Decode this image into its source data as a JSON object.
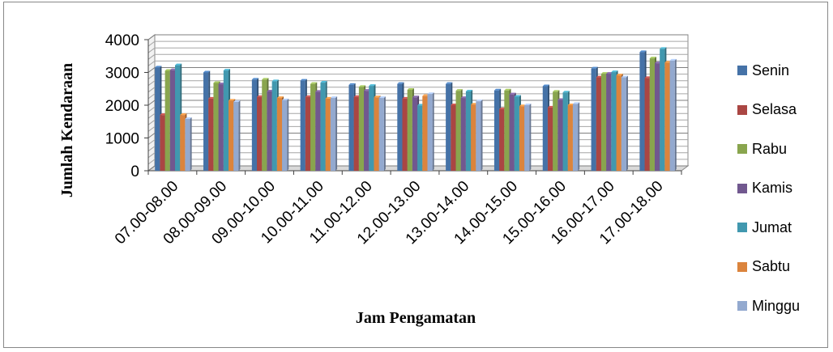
{
  "chart_data": {
    "type": "bar",
    "title": "",
    "xlabel": "Jam Pengamatan",
    "ylabel": "Jumlah Kendaraan",
    "ylim": [
      0,
      4000
    ],
    "yticks": [
      0,
      1000,
      2000,
      3000,
      4000
    ],
    "grid": true,
    "legend_position": "right",
    "categories": [
      "07.00-08.00",
      "08.00-09.00",
      "09.00-10.00",
      "10.00-11.00",
      "11.00-12.00",
      "12.00-13.00",
      "13.00-14.00",
      "14.00-15.00",
      "15.00-16.00",
      "16.00-17.00",
      "17.00-18.00"
    ],
    "series": [
      {
        "name": "Senin",
        "color": "#4572A7",
        "values": [
          3150,
          3000,
          2780,
          2750,
          2620,
          2650,
          2650,
          2450,
          2580,
          3120,
          3620
        ]
      },
      {
        "name": "Selasa",
        "color": "#AA4643",
        "values": [
          1700,
          2200,
          2250,
          2250,
          2250,
          2200,
          2000,
          1880,
          1930,
          2850,
          2830
        ]
      },
      {
        "name": "Rabu",
        "color": "#89A54E",
        "values": [
          3050,
          2680,
          2780,
          2650,
          2560,
          2470,
          2440,
          2450,
          2410,
          2960,
          3430
        ]
      },
      {
        "name": "Kamis",
        "color": "#71588F",
        "values": [
          3070,
          2640,
          2420,
          2410,
          2440,
          2240,
          2220,
          2330,
          2160,
          2960,
          3280
        ]
      },
      {
        "name": "Jumat",
        "color": "#4198AF",
        "values": [
          3220,
          3060,
          2730,
          2690,
          2590,
          1990,
          2420,
          2260,
          2390,
          3010,
          3720
        ]
      },
      {
        "name": "Sabtu",
        "color": "#DB843D",
        "values": [
          1700,
          2140,
          2220,
          2200,
          2240,
          2280,
          2020,
          1970,
          2000,
          2910,
          3300
        ]
      },
      {
        "name": "Minggu",
        "color": "#93A9CF",
        "values": [
          1580,
          2100,
          2150,
          2220,
          2220,
          2340,
          2120,
          2000,
          2040,
          2850,
          3360
        ]
      }
    ]
  }
}
